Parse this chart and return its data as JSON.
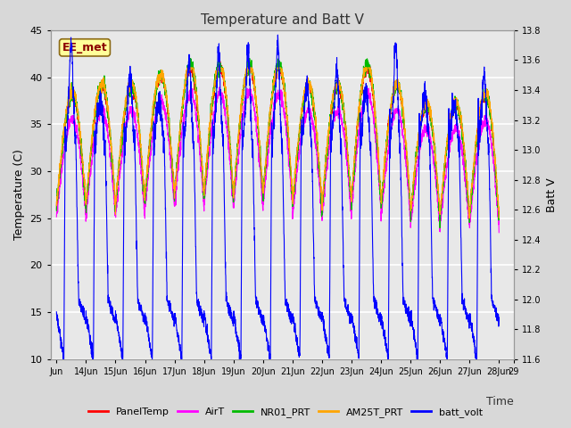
{
  "title": "Temperature and Batt V",
  "xlabel": "Time",
  "ylabel_left": "Temperature (C)",
  "ylabel_right": "Batt V",
  "ylim_left": [
    10,
    45
  ],
  "ylim_right": [
    11.6,
    13.8
  ],
  "yticks_left": [
    10,
    15,
    20,
    25,
    30,
    35,
    40,
    45
  ],
  "yticks_right": [
    11.6,
    11.8,
    12.0,
    12.2,
    12.4,
    12.6,
    12.8,
    13.0,
    13.2,
    13.4,
    13.6,
    13.8
  ],
  "xtick_labels": [
    "Jun",
    "14Jun",
    "15Jun",
    "16Jun",
    "17Jun",
    "18Jun",
    "19Jun",
    "20Jun",
    "21Jun",
    "22Jun",
    "23Jun",
    "24Jun",
    "25Jun",
    "26Jun",
    "27Jun",
    "28Jun",
    "29"
  ],
  "annotation_text": "EE_met",
  "annotation_color": "#8B0000",
  "annotation_bg": "#FFFF99",
  "colors": {
    "PanelTemp": "#FF0000",
    "AirT": "#FF00FF",
    "NR01_PRT": "#00BB00",
    "AM25T_PRT": "#FFA500",
    "batt_volt": "#0000FF"
  },
  "legend_labels": [
    "PanelTemp",
    "AirT",
    "NR01_PRT",
    "AM25T_PRT",
    "batt_volt"
  ],
  "bg_color": "#D8D8D8",
  "plot_bg_color": "#E8E8E8",
  "grid_color": "#FFFFFF",
  "linewidth": 0.8
}
